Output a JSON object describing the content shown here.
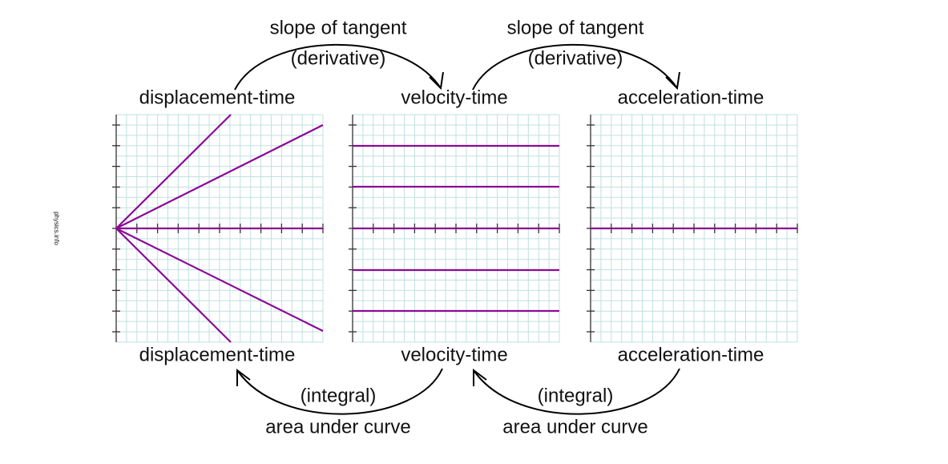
{
  "top_arrows": [
    {
      "label": "slope of tangent",
      "sublabel": "(derivative)"
    },
    {
      "label": "slope of tangent",
      "sublabel": "(derivative)"
    }
  ],
  "graphs": [
    {
      "top_label": "displacement-time",
      "bottom_label": "displacement-time"
    },
    {
      "top_label": "velocity-time",
      "bottom_label": "velocity-time"
    },
    {
      "top_label": "acceleration-time",
      "bottom_label": "acceleration-time"
    }
  ],
  "bottom_arrows": [
    {
      "label": "(integral)",
      "sublabel": "area under curve"
    },
    {
      "label": "(integral)",
      "sublabel": "area under curve"
    }
  ],
  "watermark": "physics.info"
}
